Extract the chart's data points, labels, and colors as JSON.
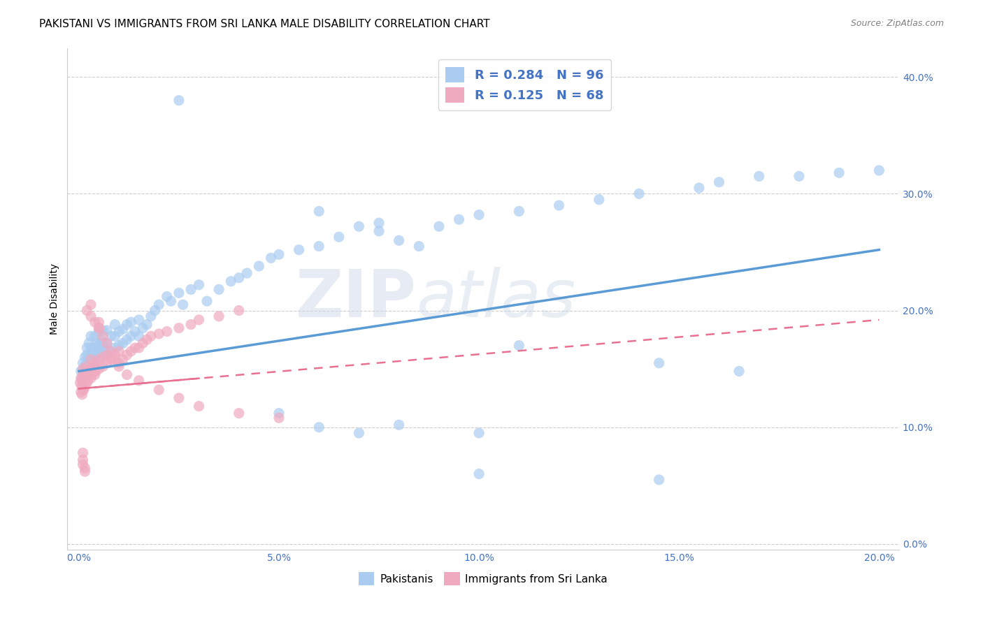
{
  "title": "PAKISTANI VS IMMIGRANTS FROM SRI LANKA MALE DISABILITY CORRELATION CHART",
  "source": "Source: ZipAtlas.com",
  "xlim": [
    -0.003,
    0.205
  ],
  "ylim": [
    -0.005,
    0.425
  ],
  "ylabel": "Male Disability",
  "ylabel_ticks": [
    0.0,
    0.1,
    0.2,
    0.3,
    0.4
  ],
  "xlabel_ticks": [
    0.0,
    0.05,
    0.1,
    0.15,
    0.2
  ],
  "legend_blue_R": "0.284",
  "legend_blue_N": "96",
  "legend_pink_R": "0.125",
  "legend_pink_N": "68",
  "label_blue": "Pakistanis",
  "label_pink": "Immigrants from Sri Lanka",
  "blue_color": "#5b9bd5",
  "pink_color": "#e87090",
  "blue_scatter_color": "#aaccf0",
  "pink_scatter_color": "#f0aac0",
  "blue_line_x": [
    0.0,
    0.2
  ],
  "blue_line_y": [
    0.148,
    0.252
  ],
  "pink_line_x": [
    0.0,
    0.2
  ],
  "pink_line_y": [
    0.133,
    0.192
  ],
  "watermark_zip": "ZIP",
  "watermark_atlas": "atlas",
  "blue_scatter_x": [
    0.0005,
    0.0008,
    0.001,
    0.001,
    0.0012,
    0.0012,
    0.0015,
    0.0015,
    0.0018,
    0.002,
    0.002,
    0.002,
    0.0022,
    0.0025,
    0.0025,
    0.003,
    0.003,
    0.003,
    0.003,
    0.0035,
    0.0035,
    0.004,
    0.004,
    0.004,
    0.0045,
    0.0045,
    0.005,
    0.005,
    0.005,
    0.0055,
    0.0055,
    0.006,
    0.006,
    0.006,
    0.0065,
    0.007,
    0.007,
    0.007,
    0.008,
    0.008,
    0.009,
    0.009,
    0.009,
    0.01,
    0.01,
    0.011,
    0.011,
    0.012,
    0.012,
    0.013,
    0.013,
    0.014,
    0.015,
    0.015,
    0.016,
    0.017,
    0.018,
    0.019,
    0.02,
    0.022,
    0.023,
    0.025,
    0.026,
    0.028,
    0.03,
    0.032,
    0.035,
    0.038,
    0.04,
    0.042,
    0.045,
    0.048,
    0.05,
    0.055,
    0.06,
    0.065,
    0.07,
    0.075,
    0.08,
    0.09,
    0.095,
    0.1,
    0.11,
    0.12,
    0.13,
    0.14,
    0.155,
    0.16,
    0.17,
    0.18,
    0.19,
    0.2,
    0.05,
    0.06,
    0.07,
    0.08
  ],
  "blue_scatter_y": [
    0.148,
    0.142,
    0.155,
    0.138,
    0.15,
    0.145,
    0.152,
    0.16,
    0.148,
    0.155,
    0.162,
    0.168,
    0.145,
    0.158,
    0.172,
    0.152,
    0.16,
    0.168,
    0.178,
    0.155,
    0.165,
    0.158,
    0.168,
    0.178,
    0.162,
    0.172,
    0.16,
    0.17,
    0.182,
    0.165,
    0.175,
    0.163,
    0.172,
    0.183,
    0.168,
    0.162,
    0.172,
    0.183,
    0.165,
    0.178,
    0.168,
    0.178,
    0.188,
    0.17,
    0.182,
    0.172,
    0.184,
    0.175,
    0.188,
    0.178,
    0.19,
    0.182,
    0.178,
    0.192,
    0.185,
    0.188,
    0.195,
    0.2,
    0.205,
    0.212,
    0.208,
    0.215,
    0.205,
    0.218,
    0.222,
    0.208,
    0.218,
    0.225,
    0.228,
    0.232,
    0.238,
    0.245,
    0.248,
    0.252,
    0.255,
    0.263,
    0.272,
    0.268,
    0.26,
    0.272,
    0.278,
    0.282,
    0.285,
    0.29,
    0.295,
    0.3,
    0.305,
    0.31,
    0.315,
    0.315,
    0.318,
    0.32,
    0.112,
    0.1,
    0.095,
    0.102
  ],
  "blue_scatter_y_outliers": [
    0.38,
    0.275,
    0.255,
    0.285,
    0.17,
    0.155,
    0.148,
    0.095,
    0.06,
    0.055
  ],
  "blue_scatter_x_outliers": [
    0.025,
    0.075,
    0.085,
    0.06,
    0.11,
    0.145,
    0.165,
    0.1,
    0.1,
    0.145
  ],
  "pink_scatter_x": [
    0.0003,
    0.0005,
    0.0005,
    0.0007,
    0.0008,
    0.0008,
    0.001,
    0.001,
    0.001,
    0.001,
    0.0012,
    0.0012,
    0.0015,
    0.0015,
    0.002,
    0.002,
    0.002,
    0.0022,
    0.0025,
    0.003,
    0.003,
    0.003,
    0.0032,
    0.0035,
    0.004,
    0.004,
    0.0042,
    0.005,
    0.005,
    0.006,
    0.006,
    0.007,
    0.007,
    0.008,
    0.009,
    0.01,
    0.01,
    0.011,
    0.012,
    0.013,
    0.014,
    0.015,
    0.016,
    0.017,
    0.018,
    0.02,
    0.022,
    0.025,
    0.028,
    0.03,
    0.035,
    0.04,
    0.002,
    0.003,
    0.004,
    0.005,
    0.006,
    0.007,
    0.008,
    0.009,
    0.01,
    0.012,
    0.015,
    0.02,
    0.025,
    0.03,
    0.04,
    0.05
  ],
  "pink_scatter_y": [
    0.138,
    0.13,
    0.142,
    0.135,
    0.128,
    0.14,
    0.132,
    0.138,
    0.145,
    0.15,
    0.132,
    0.142,
    0.135,
    0.148,
    0.138,
    0.145,
    0.152,
    0.14,
    0.148,
    0.142,
    0.15,
    0.158,
    0.145,
    0.152,
    0.145,
    0.155,
    0.148,
    0.15,
    0.158,
    0.152,
    0.16,
    0.155,
    0.162,
    0.158,
    0.162,
    0.155,
    0.165,
    0.158,
    0.162,
    0.165,
    0.168,
    0.168,
    0.172,
    0.175,
    0.178,
    0.18,
    0.182,
    0.185,
    0.188,
    0.192,
    0.195,
    0.2,
    0.2,
    0.195,
    0.19,
    0.185,
    0.178,
    0.172,
    0.165,
    0.158,
    0.152,
    0.145,
    0.14,
    0.132,
    0.125,
    0.118,
    0.112,
    0.108
  ],
  "pink_scatter_y_outliers": [
    0.205,
    0.19,
    0.185,
    0.078,
    0.072,
    0.068,
    0.065,
    0.062
  ],
  "pink_scatter_x_outliers": [
    0.003,
    0.005,
    0.005,
    0.001,
    0.001,
    0.001,
    0.0015,
    0.0015
  ],
  "tick_color": "#4472c4",
  "tick_fontsize": 10,
  "title_fontsize": 11
}
